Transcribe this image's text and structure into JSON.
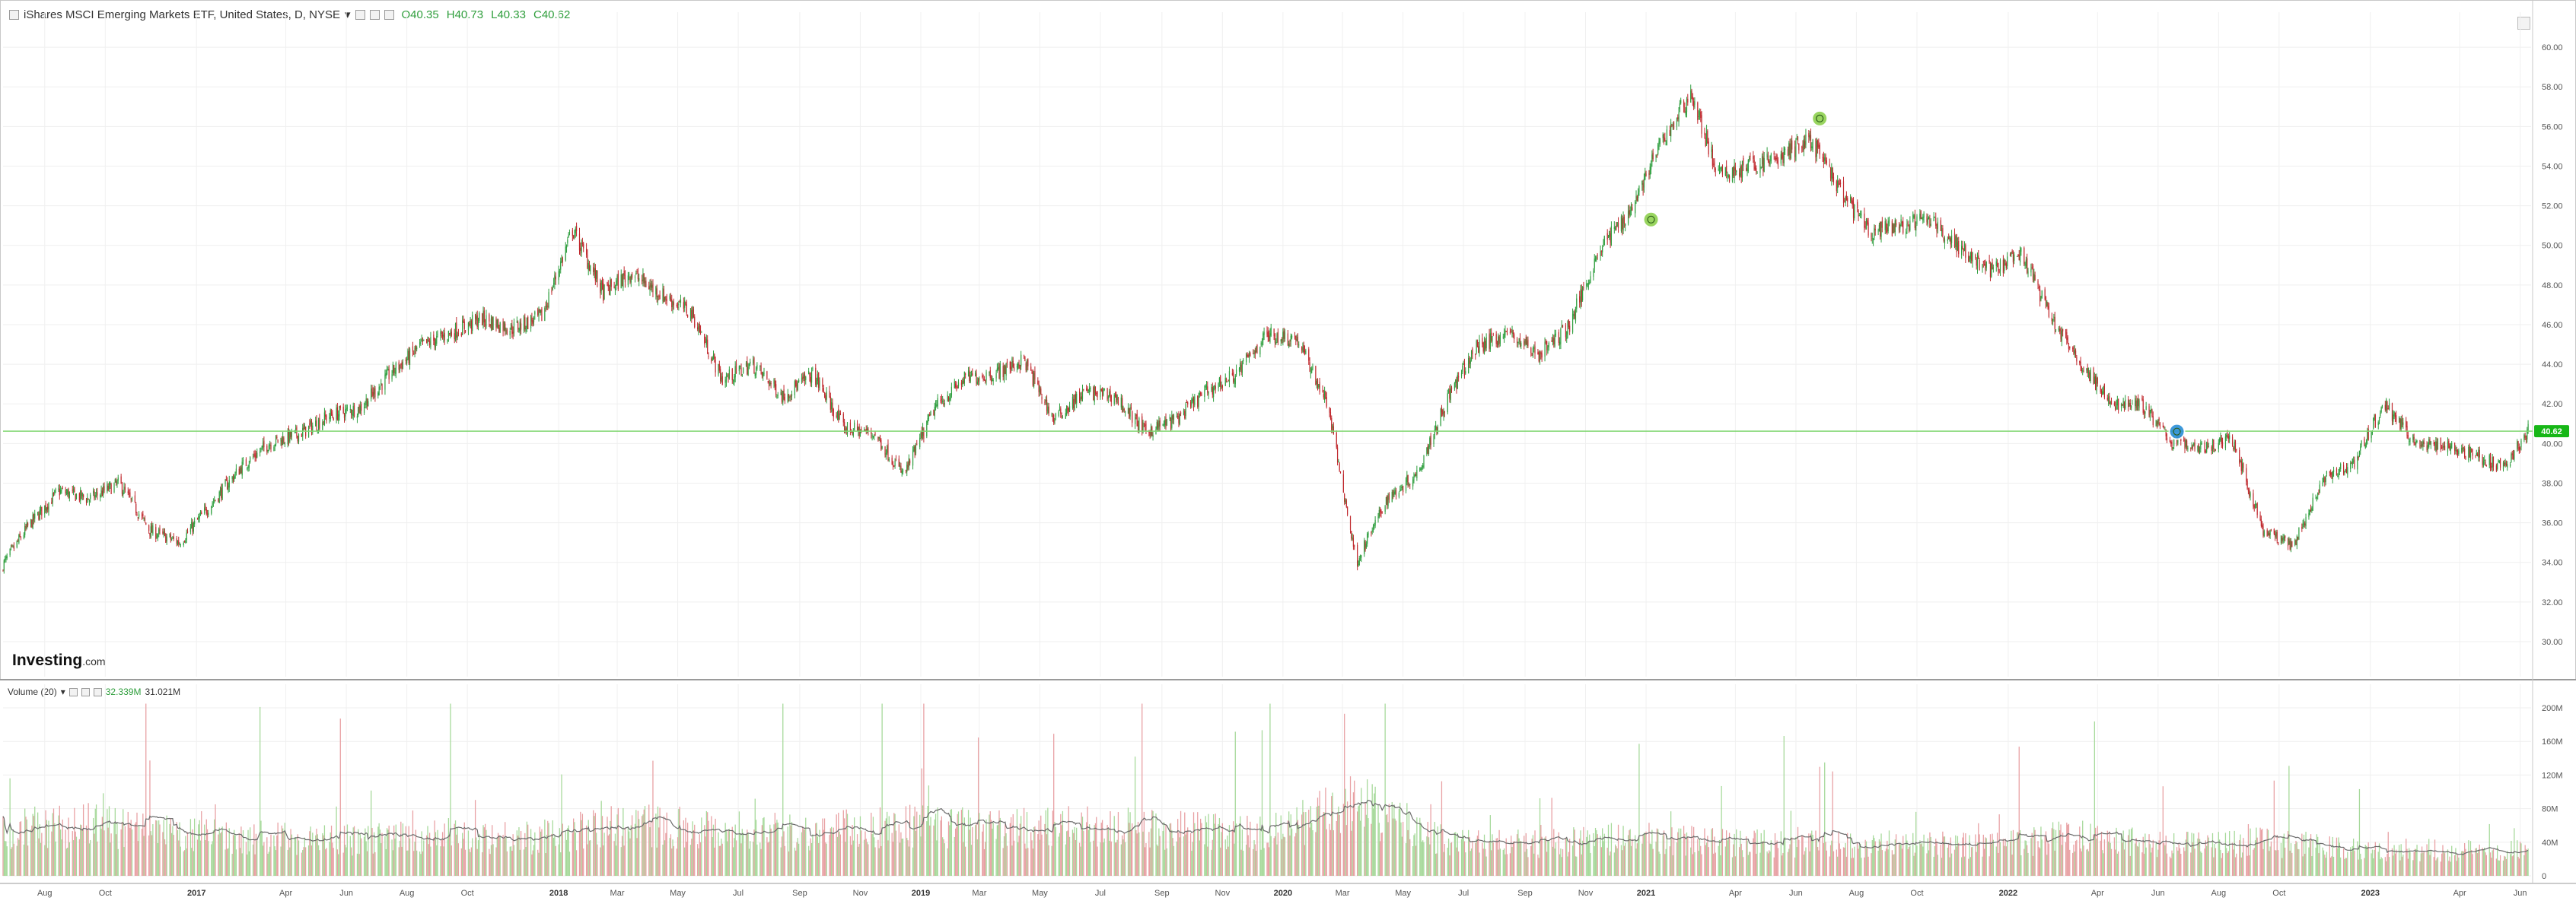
{
  "header": {
    "title": "iShares MSCI Emerging Markets ETF, United States, D, NYSE",
    "open": "O40.35",
    "high": "H40.73",
    "low": "L40.33",
    "close": "C40.62"
  },
  "volume_header": {
    "label": "Volume (20)",
    "value": "32.339M",
    "ma_value": "31.021M"
  },
  "logo": {
    "main": "Investing",
    "suffix": ".com"
  },
  "current_price_label": "40.62",
  "colors": {
    "up": "#2e9e3e",
    "down": "#c0282d",
    "vol_up": "#a6d99a",
    "vol_down": "#e8a0a3",
    "price_line": "#7fd66f",
    "price_tag": "#17b717",
    "event_green": "#8fd14f",
    "event_blue": "#2a8fd8"
  },
  "chart_data": [
    {
      "type": "candlestick",
      "title": "iShares MSCI Emerging Markets ETF, United States, D, NYSE",
      "ylim": [
        29,
        61
      ],
      "ytick_labels": [
        "30.00",
        "32.00",
        "34.00",
        "36.00",
        "38.00",
        "40.00",
        "42.00",
        "44.00",
        "46.00",
        "48.00",
        "50.00",
        "52.00",
        "54.00",
        "56.00",
        "58.00",
        "60.00"
      ],
      "ytick_values": [
        30,
        32,
        34,
        36,
        38,
        40,
        42,
        44,
        46,
        48,
        50,
        52,
        54,
        56,
        58,
        60
      ],
      "x_ticks": [
        "Aug",
        "Oct",
        "2017",
        "Apr",
        "Jun",
        "Aug",
        "Oct",
        "2018",
        "Mar",
        "May",
        "Jul",
        "Sep",
        "Nov",
        "2019",
        "Mar",
        "May",
        "Jul",
        "Sep",
        "Nov",
        "2020",
        "Mar",
        "May",
        "Jul",
        "Sep",
        "Nov",
        "2021",
        "Apr",
        "Jun",
        "Aug",
        "Oct",
        "2022",
        "Apr",
        "Jun",
        "Aug",
        "Oct",
        "2023",
        "Apr",
        "Jun"
      ],
      "x_tick_dates": [
        "2016-08-01",
        "2016-10-01",
        "2017-01-01",
        "2017-04-01",
        "2017-06-01",
        "2017-08-01",
        "2017-10-01",
        "2018-01-01",
        "2018-03-01",
        "2018-05-01",
        "2018-07-01",
        "2018-09-01",
        "2018-11-01",
        "2019-01-01",
        "2019-03-01",
        "2019-05-01",
        "2019-07-01",
        "2019-09-01",
        "2019-11-01",
        "2020-01-01",
        "2020-03-01",
        "2020-05-01",
        "2020-07-01",
        "2020-09-01",
        "2020-11-01",
        "2021-01-01",
        "2021-04-01",
        "2021-06-01",
        "2021-08-01",
        "2021-10-01",
        "2022-01-01",
        "2022-04-01",
        "2022-06-01",
        "2022-08-01",
        "2022-10-01",
        "2023-01-01",
        "2023-04-01",
        "2023-06-01"
      ],
      "series": [
        {
          "name": "Close",
          "dates": [
            "2016-06-15",
            "2016-07-15",
            "2016-08-15",
            "2016-09-15",
            "2016-10-15",
            "2016-11-15",
            "2016-12-15",
            "2017-01-15",
            "2017-02-15",
            "2017-03-15",
            "2017-04-15",
            "2017-05-15",
            "2017-06-15",
            "2017-07-15",
            "2017-08-15",
            "2017-09-15",
            "2017-10-15",
            "2017-11-15",
            "2017-12-15",
            "2018-01-15",
            "2018-02-15",
            "2018-03-15",
            "2018-04-15",
            "2018-05-15",
            "2018-06-15",
            "2018-07-15",
            "2018-08-15",
            "2018-09-15",
            "2018-10-15",
            "2018-11-15",
            "2018-12-15",
            "2019-01-15",
            "2019-02-15",
            "2019-03-15",
            "2019-04-15",
            "2019-05-15",
            "2019-06-15",
            "2019-07-15",
            "2019-08-15",
            "2019-09-15",
            "2019-10-15",
            "2019-11-15",
            "2019-12-15",
            "2020-01-15",
            "2020-02-15",
            "2020-03-15",
            "2020-04-15",
            "2020-05-15",
            "2020-06-15",
            "2020-07-15",
            "2020-08-15",
            "2020-09-15",
            "2020-10-15",
            "2020-11-15",
            "2020-12-15",
            "2021-01-15",
            "2021-02-15",
            "2021-03-15",
            "2021-04-15",
            "2021-05-15",
            "2021-06-15",
            "2021-07-15",
            "2021-08-15",
            "2021-09-15",
            "2021-10-15",
            "2021-11-15",
            "2021-12-15",
            "2022-01-15",
            "2022-02-15",
            "2022-03-15",
            "2022-04-15",
            "2022-05-15",
            "2022-06-15",
            "2022-07-15",
            "2022-08-15",
            "2022-09-15",
            "2022-10-15",
            "2022-11-15",
            "2022-12-15",
            "2023-01-15",
            "2023-02-15",
            "2023-03-15",
            "2023-04-15",
            "2023-05-15",
            "2023-06-09"
          ],
          "values": [
            33.5,
            35.8,
            37.6,
            37.2,
            38.0,
            35.6,
            35.0,
            36.9,
            38.8,
            40.0,
            40.5,
            41.4,
            41.8,
            43.5,
            44.9,
            45.6,
            46.3,
            45.8,
            46.4,
            50.8,
            47.6,
            48.6,
            47.5,
            46.6,
            43.2,
            44.0,
            42.4,
            43.5,
            40.8,
            40.5,
            38.4,
            41.8,
            43.3,
            43.5,
            44.2,
            41.2,
            42.6,
            42.4,
            40.6,
            41.2,
            42.6,
            43.5,
            45.5,
            45.3,
            42.0,
            34.0,
            37.2,
            38.5,
            42.3,
            44.9,
            45.6,
            44.5,
            45.9,
            49.8,
            51.7,
            55.0,
            57.7,
            53.5,
            54.0,
            54.4,
            55.4,
            52.8,
            50.6,
            51.0,
            51.3,
            49.8,
            48.7,
            49.5,
            46.2,
            44.0,
            42.0,
            42.0,
            40.1,
            39.8,
            40.2,
            35.6,
            34.8,
            38.3,
            39.0,
            42.0,
            40.0,
            39.9,
            39.5,
            38.7,
            40.62
          ]
        }
      ]
    },
    {
      "type": "bar",
      "title": "Volume (20)",
      "ylim": [
        0,
        210
      ],
      "ytick_labels": [
        "0",
        "40M",
        "80M",
        "120M",
        "160M",
        "200M"
      ],
      "ytick_values": [
        0,
        40,
        80,
        120,
        160,
        200
      ],
      "series": [
        {
          "name": "Volume (20)",
          "dates": [
            "2016-06-15",
            "2016-09-15",
            "2016-12-15",
            "2017-03-15",
            "2017-06-15",
            "2017-09-15",
            "2017-12-15",
            "2018-03-15",
            "2018-06-15",
            "2018-09-15",
            "2018-12-15",
            "2019-03-15",
            "2019-06-15",
            "2019-09-15",
            "2019-12-15",
            "2020-03-15",
            "2020-06-15",
            "2020-09-15",
            "2020-12-15",
            "2021-03-15",
            "2021-06-15",
            "2021-09-15",
            "2021-12-15",
            "2022-03-15",
            "2022-06-15",
            "2022-09-15",
            "2022-12-15",
            "2023-03-15",
            "2023-06-09"
          ],
          "values": [
            55,
            60,
            48,
            45,
            42,
            48,
            46,
            62,
            55,
            52,
            60,
            55,
            58,
            55,
            50,
            85,
            40,
            38,
            45,
            40,
            38,
            38,
            35,
            50,
            36,
            40,
            32,
            30,
            32
          ]
        }
      ]
    }
  ]
}
